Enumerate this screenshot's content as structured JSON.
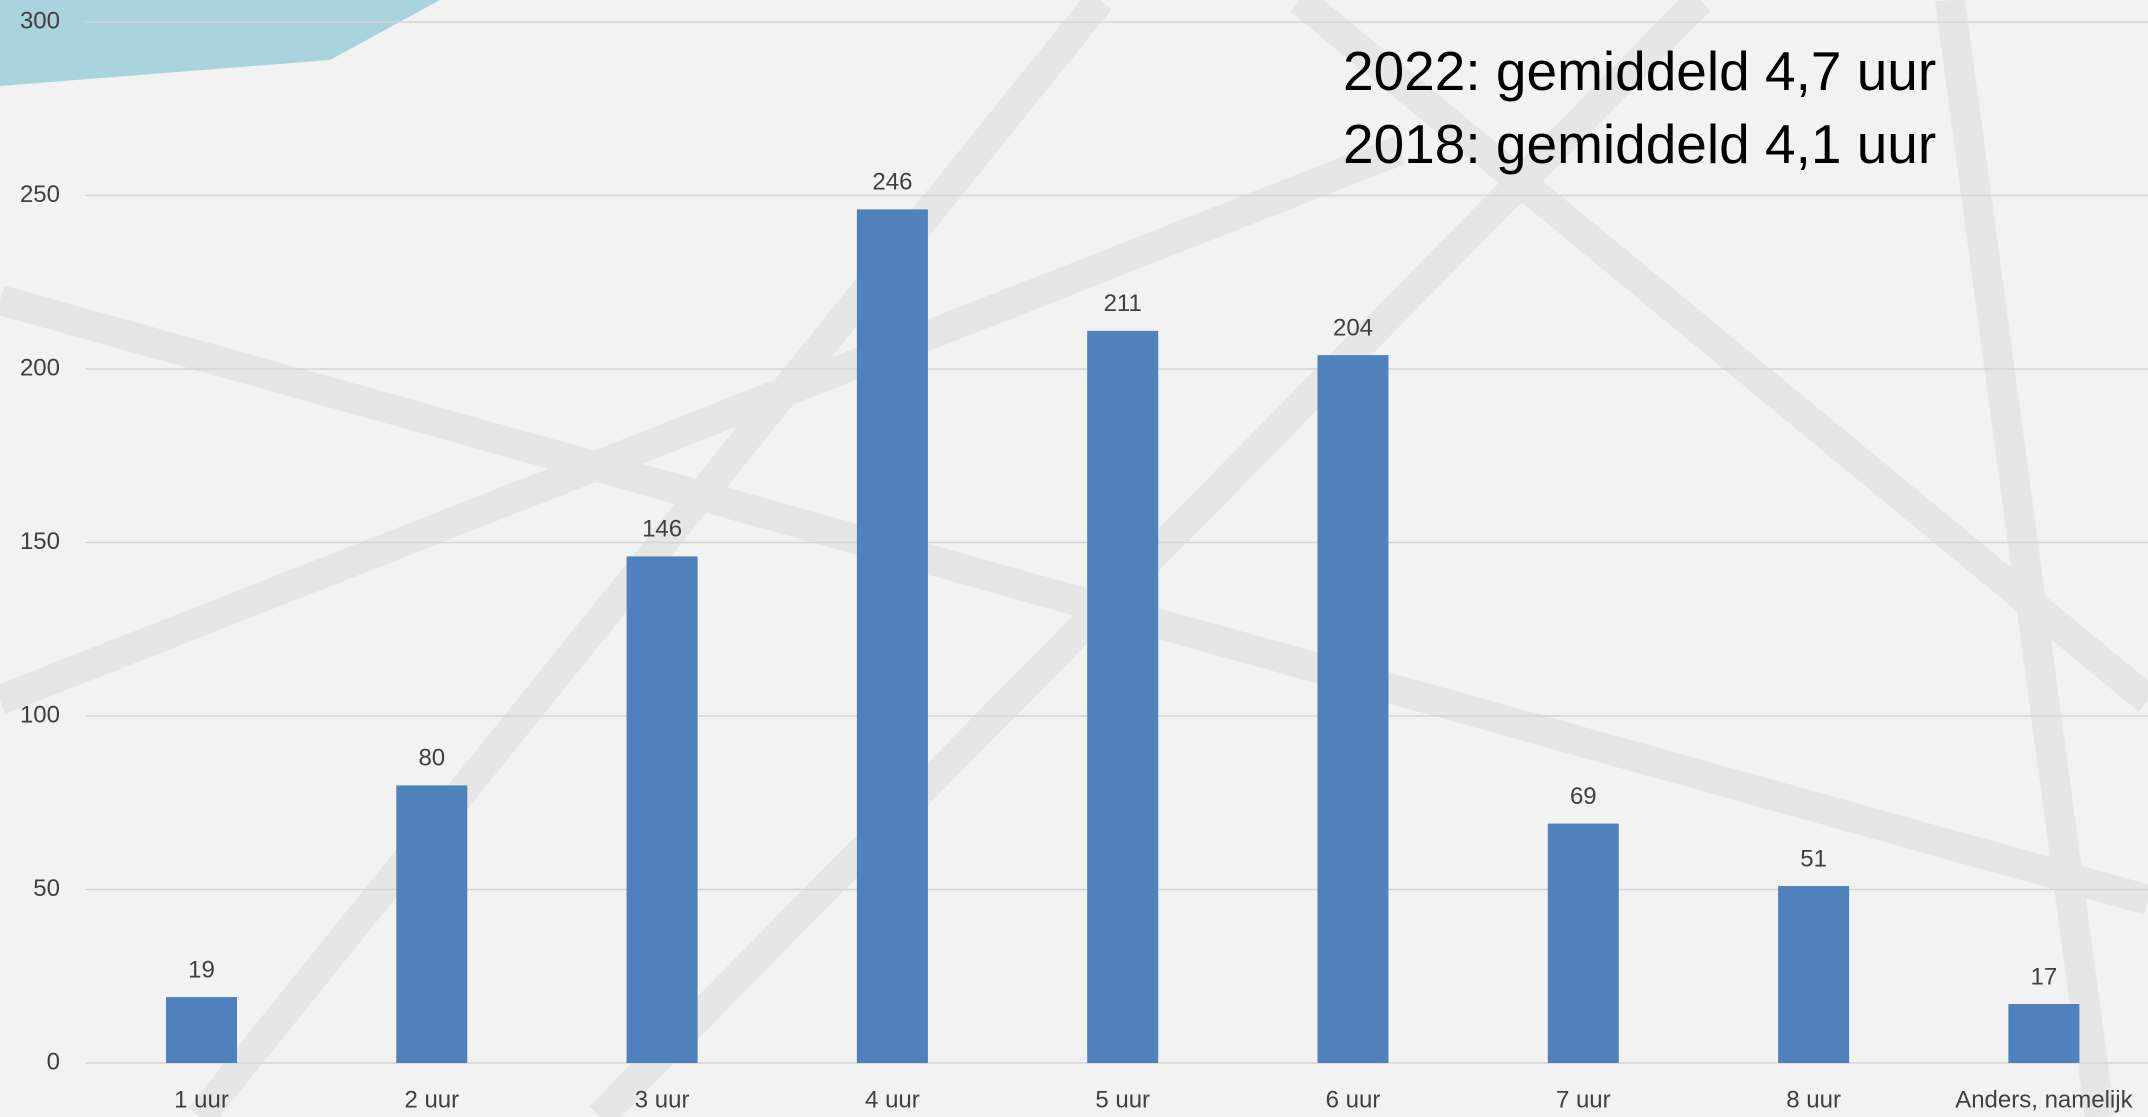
{
  "chart_data": {
    "type": "bar",
    "annotations": [
      "2022: gemiddeld 4,7 uur",
      "2018: gemiddeld 4,1 uur"
    ],
    "categories": [
      "1 uur",
      "2 uur",
      "3 uur",
      "4 uur",
      "5 uur",
      "6 uur",
      "7 uur",
      "8 uur",
      "Anders, namelijk"
    ],
    "values": [
      19,
      80,
      146,
      246,
      211,
      204,
      69,
      51,
      17
    ],
    "color": "#4f81bd",
    "ylim": [
      0,
      300
    ],
    "yticks": [
      0,
      50,
      100,
      150,
      200,
      250,
      300
    ],
    "grid": true
  }
}
